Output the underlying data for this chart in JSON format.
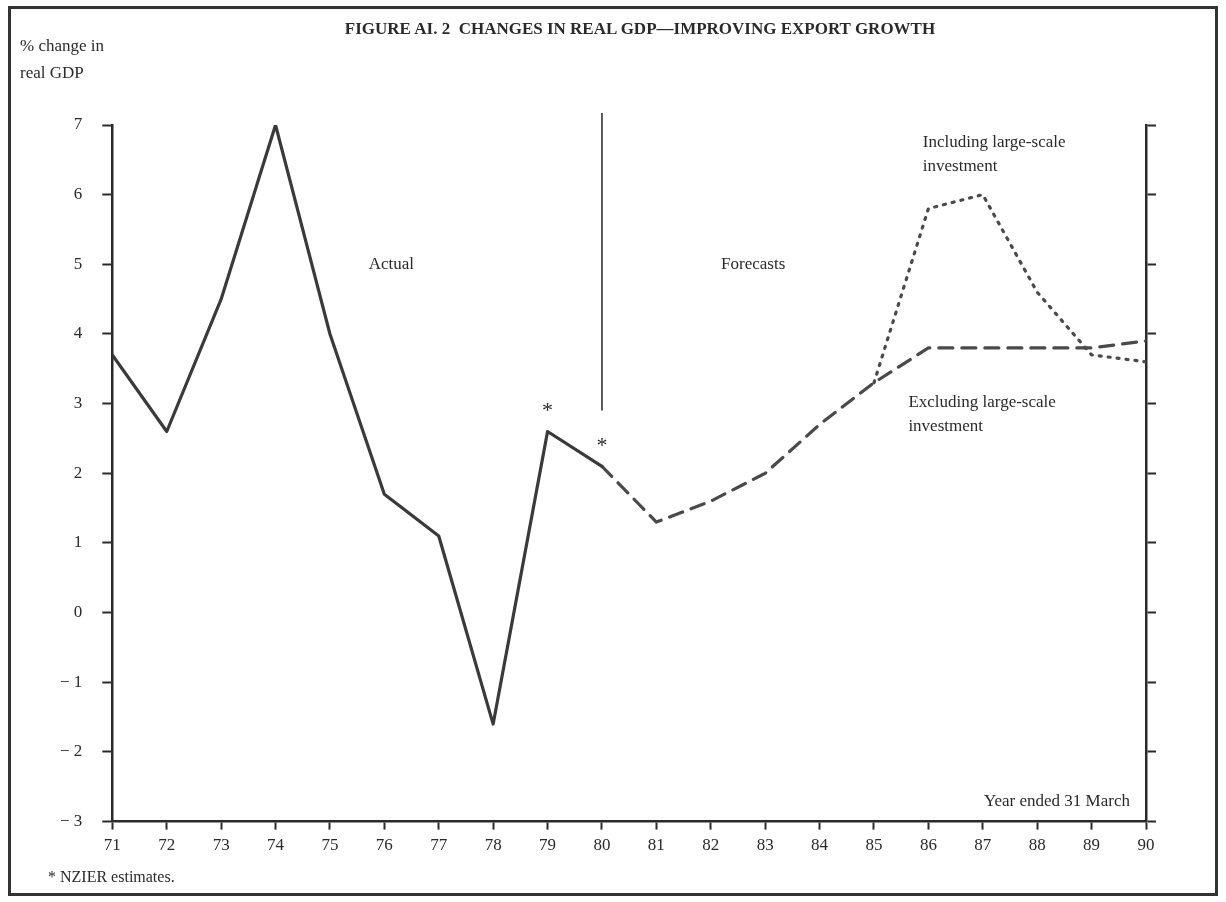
{
  "chart_data": {
    "type": "line",
    "title": "FIGURE AI. 2  CHANGES IN REAL GDP—IMPROVING EXPORT GROWTH",
    "ylabel": "% change in real GDP",
    "xlabel": "Year ended 31 March",
    "xlim": [
      71,
      90
    ],
    "xticks": [
      71,
      72,
      73,
      74,
      75,
      76,
      77,
      78,
      79,
      80,
      81,
      82,
      83,
      84,
      85,
      86,
      87,
      88,
      89,
      90
    ],
    "ylim": [
      -3,
      7
    ],
    "yticks": [
      {
        "value": -3,
        "label": "− 3"
      },
      {
        "value": -2,
        "label": "− 2"
      },
      {
        "value": -1,
        "label": "− 1"
      },
      0,
      1,
      2,
      3,
      4,
      5,
      6,
      7
    ],
    "grid": false,
    "legend": false,
    "marker": "none",
    "series": [
      {
        "color": "#3a3a3a",
        "line_style": "solid",
        "x": [
          71,
          72,
          73,
          74,
          75,
          76,
          77,
          78,
          79,
          80
        ],
        "values": [
          3.7,
          2.6,
          4.5,
          7.0,
          4.0,
          1.7,
          1.1,
          -1.6,
          2.6,
          2.1
        ]
      },
      {
        "name": "Excluding large-scale investment",
        "color": "#4a4a4a",
        "line_style": "dashed",
        "x": [
          80,
          81,
          82,
          83,
          84,
          85,
          86,
          87,
          88,
          89,
          90
        ],
        "values": [
          2.1,
          1.3,
          1.6,
          2.0,
          2.7,
          3.3,
          3.8,
          3.8,
          3.8,
          3.8,
          3.9
        ]
      },
      {
        "name": "Including large-scale investment",
        "color": "#4a4a4a",
        "line_style": "dotted",
        "x": [
          85,
          86,
          87,
          88,
          89,
          90
        ],
        "values": [
          3.3,
          5.8,
          6.0,
          4.6,
          3.7,
          3.6
        ]
      }
    ],
    "ref_lines": [
      {
        "axis": "x",
        "value": 80,
        "color": "#333333"
      }
    ],
    "annotations": [
      "Actual",
      "Forecasts",
      {
        "text": "*",
        "x": 79,
        "y": 2.6
      },
      {
        "text": "*",
        "x": 80,
        "y": 2.1
      },
      "* NZIER estimates."
    ]
  }
}
